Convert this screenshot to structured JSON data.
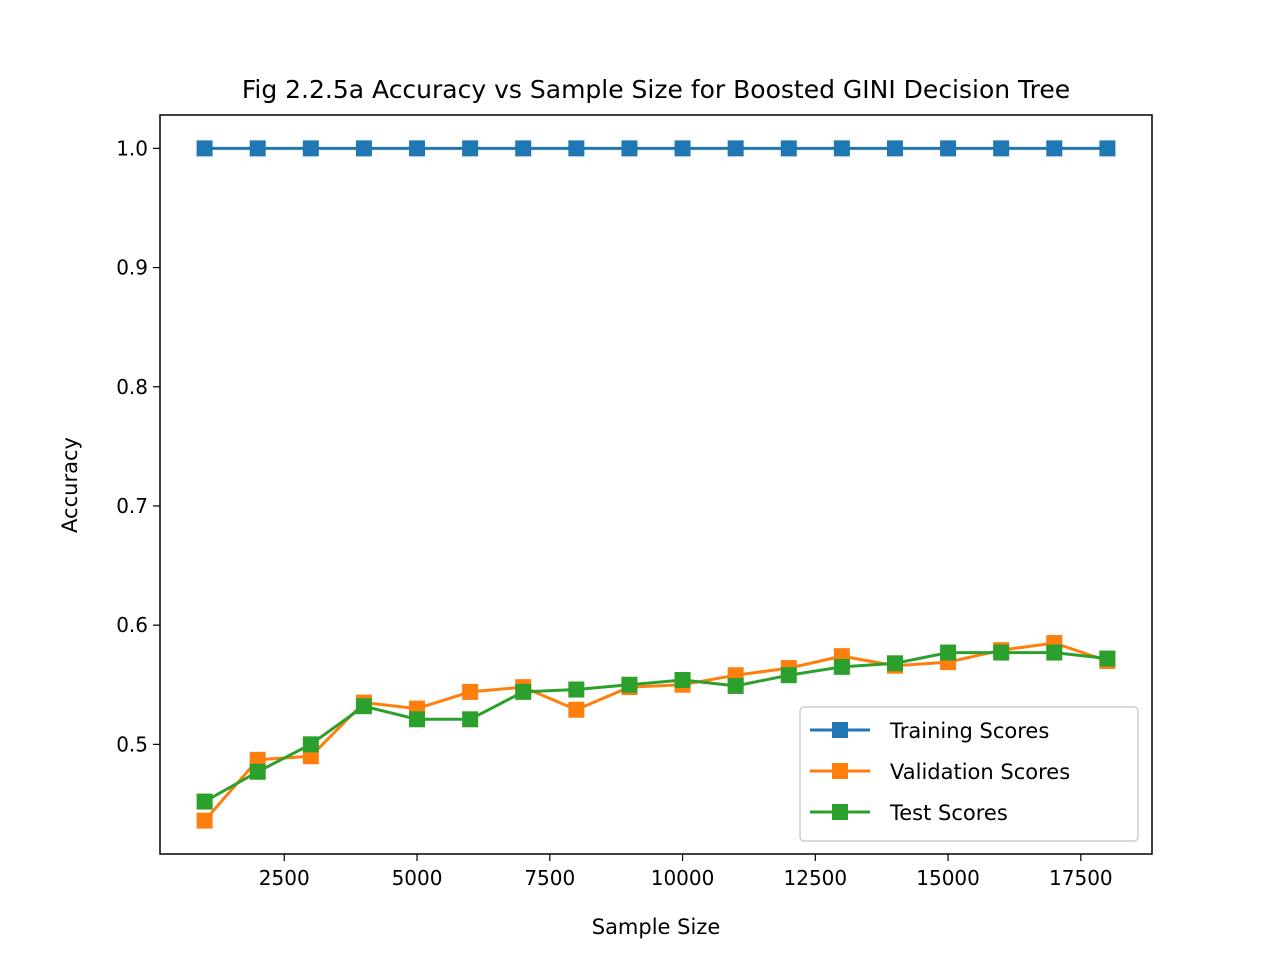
{
  "chart_data": {
    "type": "line",
    "title": "Fig 2.2.5a Accuracy vs Sample Size for Boosted GINI Decision Tree",
    "xlabel": "Sample Size",
    "ylabel": "Accuracy",
    "xlim": [
      160,
      18840
    ],
    "ylim": [
      0.408,
      1.028
    ],
    "x_ticks": [
      2500,
      5000,
      7500,
      10000,
      12500,
      15000,
      17500
    ],
    "y_ticks": [
      0.5,
      0.6,
      0.7,
      0.8,
      0.9,
      1.0
    ],
    "y_tick_labels": [
      "0.5",
      "0.6",
      "0.7",
      "0.8",
      "0.9",
      "1.0"
    ],
    "grid": false,
    "legend_position": "lower-right",
    "marker": "square",
    "x": [
      1000,
      2000,
      3000,
      4000,
      5000,
      6000,
      7000,
      8000,
      9000,
      10000,
      11000,
      12000,
      13000,
      14000,
      15000,
      16000,
      17000,
      18000
    ],
    "series": [
      {
        "name": "Training Scores",
        "color": "#1f77b4",
        "values": [
          1.0,
          1.0,
          1.0,
          1.0,
          1.0,
          1.0,
          1.0,
          1.0,
          1.0,
          1.0,
          1.0,
          1.0,
          1.0,
          1.0,
          1.0,
          1.0,
          1.0,
          1.0
        ]
      },
      {
        "name": "Validation Scores",
        "color": "#ff7f0e",
        "values": [
          0.436,
          0.487,
          0.49,
          0.535,
          0.53,
          0.544,
          0.548,
          0.529,
          0.548,
          0.55,
          0.558,
          0.564,
          0.574,
          0.566,
          0.569,
          0.579,
          0.585,
          0.57
        ]
      },
      {
        "name": "Test Scores",
        "color": "#2ca02c",
        "values": [
          0.452,
          0.477,
          0.5,
          0.532,
          0.521,
          0.521,
          0.544,
          0.546,
          0.55,
          0.554,
          0.549,
          0.558,
          0.565,
          0.568,
          0.577,
          0.577,
          0.577,
          0.572
        ]
      }
    ]
  }
}
